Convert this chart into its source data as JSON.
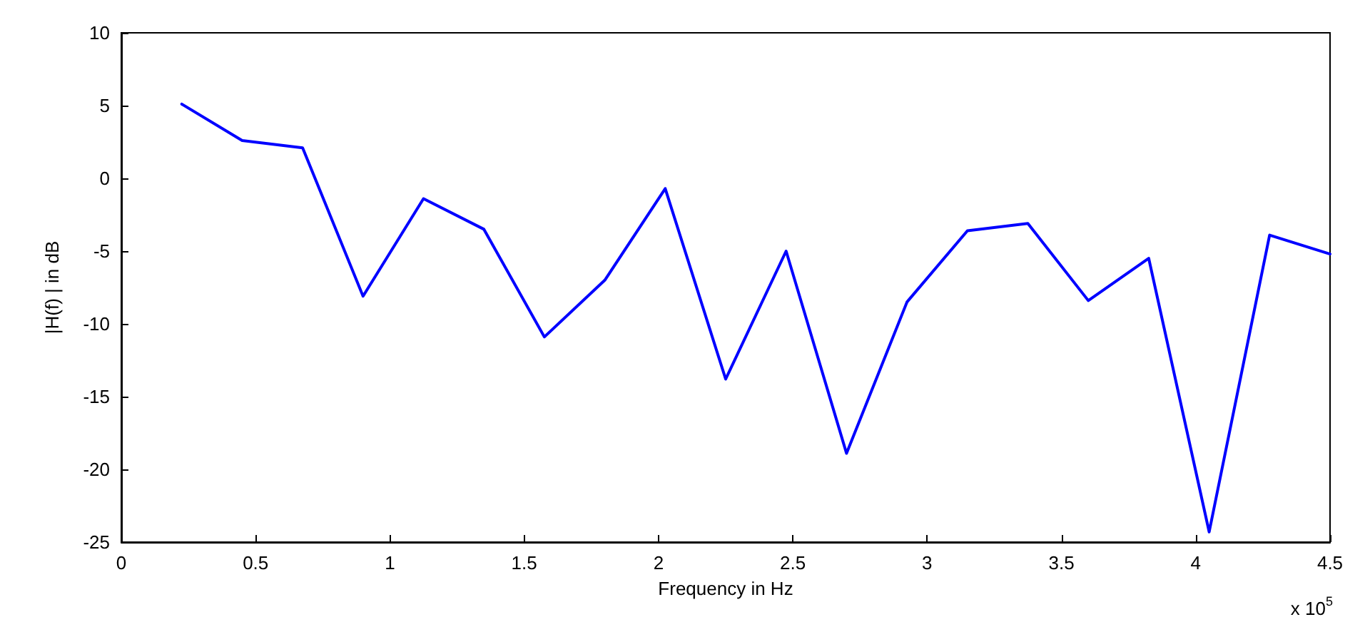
{
  "chart_data": {
    "type": "line",
    "xlabel": "Frequency in Hz",
    "ylabel": "|H(f) | in dB",
    "x": [
      0.225,
      0.45,
      0.675,
      0.9,
      1.125,
      1.35,
      1.575,
      1.8,
      2.025,
      2.25,
      2.475,
      2.7,
      2.925,
      3.15,
      3.375,
      3.6,
      3.825,
      4.05,
      4.275,
      4.5
    ],
    "series": [
      {
        "color": "#0000ff",
        "values": [
          5.1,
          2.6,
          2.1,
          -8.1,
          -1.4,
          -3.5,
          -10.9,
          -7.0,
          -0.7,
          -13.8,
          -5.0,
          -18.9,
          -8.5,
          -3.6,
          -3.1,
          -8.4,
          -5.5,
          -24.3,
          -3.9,
          -5.2
        ]
      }
    ],
    "xlim": [
      0,
      4.5
    ],
    "xticks": [
      0,
      0.5,
      1,
      1.5,
      2,
      2.5,
      3,
      3.5,
      4,
      4.5
    ],
    "ylim": [
      -25,
      10
    ],
    "yticks": [
      -25,
      -20,
      -15,
      -10,
      -5,
      0,
      5,
      10
    ],
    "grid": false,
    "marker": "none",
    "line_style": "solid",
    "annotations": [
      "x 10$^{5}$"
    ]
  }
}
